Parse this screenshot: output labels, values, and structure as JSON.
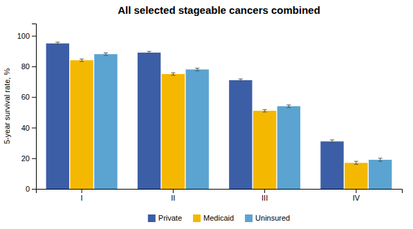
{
  "chart_data": {
    "type": "bar",
    "title": "All selected stageable cancers combined",
    "ylabel": "5-year survival rate, %",
    "categories": [
      "I",
      "II",
      "III",
      "IV"
    ],
    "series": [
      {
        "name": "Private",
        "color": "#3B5EA6",
        "values": [
          95,
          89,
          71,
          31
        ],
        "errors": [
          0.8,
          0.8,
          0.8,
          1.0
        ]
      },
      {
        "name": "Medicaid",
        "color": "#F5B800",
        "values": [
          84,
          75,
          51,
          17
        ],
        "errors": [
          0.8,
          0.8,
          0.8,
          1.0
        ]
      },
      {
        "name": "Uninsured",
        "color": "#5BA3D0",
        "values": [
          88,
          78,
          54,
          19
        ],
        "errors": [
          0.8,
          0.8,
          0.8,
          1.0
        ]
      }
    ],
    "ylim": [
      0,
      108
    ],
    "yticks": [
      0,
      20,
      40,
      60,
      80,
      100
    ],
    "grid": false,
    "legend": "bottom"
  }
}
